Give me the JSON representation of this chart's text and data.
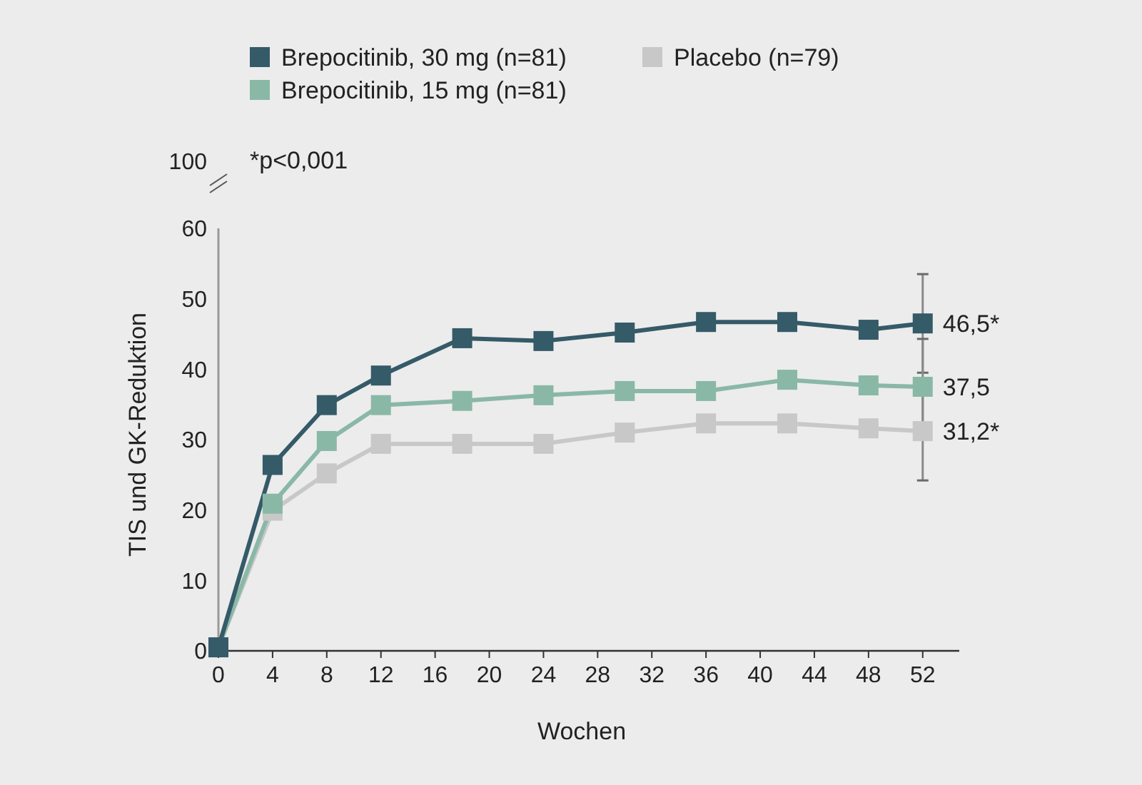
{
  "chart_data": {
    "type": "line",
    "xlabel": "Wochen",
    "ylabel": "TIS und GK-Reduktion",
    "annotations": [
      "100",
      "*p<0,001"
    ],
    "x": [
      0,
      4,
      8,
      12,
      18,
      24,
      30,
      36,
      42,
      48,
      52
    ],
    "series": [
      {
        "name": "Brepocitinib, 30 mg (n=81)",
        "color": "#355a68",
        "values": [
          0.5,
          26.4,
          34.9,
          39.1,
          44.4,
          44.0,
          45.2,
          46.7,
          46.7,
          45.6,
          46.5
        ],
        "errors": [
          null,
          null,
          null,
          null,
          null,
          null,
          null,
          null,
          null,
          null,
          7.0
        ],
        "value_labels": [
          null,
          null,
          null,
          null,
          null,
          null,
          null,
          null,
          null,
          null,
          "46,5*"
        ]
      },
      {
        "name": "Brepocitinib, 15 mg (n=81)",
        "color": "#8ab8a6",
        "values": [
          0.5,
          20.9,
          29.8,
          34.9,
          35.5,
          36.3,
          36.9,
          36.9,
          38.5,
          37.7,
          37.5
        ],
        "errors": [
          null,
          null,
          null,
          null,
          null,
          null,
          null,
          null,
          null,
          null,
          6.8
        ],
        "value_labels": [
          null,
          null,
          null,
          null,
          null,
          null,
          null,
          null,
          null,
          null,
          "37,5"
        ]
      },
      {
        "name": "Placebo (n=79)",
        "color": "#c8c8c8",
        "values": [
          0.5,
          19.9,
          25.2,
          29.4,
          29.4,
          29.4,
          31.0,
          32.3,
          32.3,
          31.6,
          31.2
        ],
        "errors": [
          null,
          null,
          null,
          null,
          null,
          null,
          null,
          null,
          null,
          null,
          7.0
        ],
        "value_labels": [
          null,
          null,
          null,
          null,
          null,
          null,
          null,
          null,
          null,
          null,
          "31,2*"
        ]
      }
    ],
    "xlim": [
      0,
      54.7
    ],
    "xticks": [
      0,
      4,
      8,
      12,
      16,
      20,
      24,
      28,
      32,
      36,
      40,
      44,
      48,
      52
    ],
    "ylim": [
      0,
      60
    ],
    "yticks": [
      0,
      10,
      20,
      30,
      40,
      50,
      60
    ],
    "legend": "top",
    "grid": false,
    "marker": "square",
    "line_style": "solid"
  }
}
